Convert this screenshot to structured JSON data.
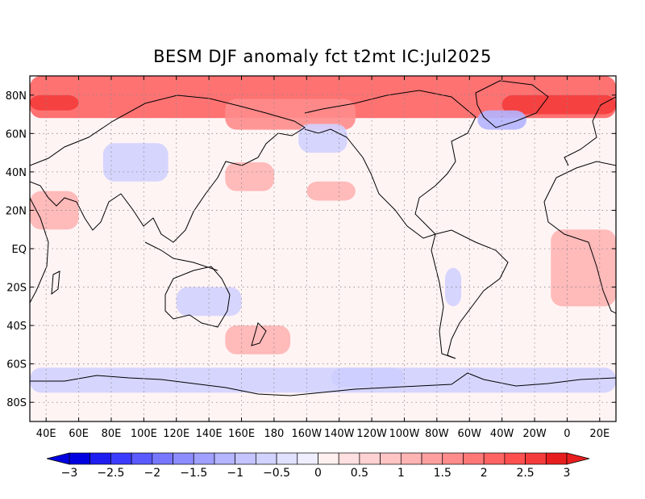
{
  "title": "BESM  DJF anomaly fct t2mt IC:Jul2025",
  "map": {
    "projection": "equirectangular",
    "lon_range": [
      30,
      390
    ],
    "lat_range": [
      -90,
      90
    ],
    "lat_ticks": [
      {
        "label": "80N",
        "value": 80
      },
      {
        "label": "60N",
        "value": 60
      },
      {
        "label": "40N",
        "value": 40
      },
      {
        "label": "20N",
        "value": 20
      },
      {
        "label": "EQ",
        "value": 0
      },
      {
        "label": "20S",
        "value": -20
      },
      {
        "label": "40S",
        "value": -40
      },
      {
        "label": "60S",
        "value": -60
      },
      {
        "label": "80S",
        "value": -80
      }
    ],
    "lon_ticks": [
      {
        "label": "40E",
        "value": 40
      },
      {
        "label": "60E",
        "value": 60
      },
      {
        "label": "80E",
        "value": 80
      },
      {
        "label": "100E",
        "value": 100
      },
      {
        "label": "120E",
        "value": 120
      },
      {
        "label": "140E",
        "value": 140
      },
      {
        "label": "160E",
        "value": 160
      },
      {
        "label": "180",
        "value": 180
      },
      {
        "label": "160W",
        "value": 200
      },
      {
        "label": "140W",
        "value": 220
      },
      {
        "label": "120W",
        "value": 240
      },
      {
        "label": "100W",
        "value": 260
      },
      {
        "label": "80W",
        "value": 280
      },
      {
        "label": "60W",
        "value": 300
      },
      {
        "label": "40W",
        "value": 320
      },
      {
        "label": "20W",
        "value": 340
      },
      {
        "label": "0",
        "value": 360
      },
      {
        "label": "20E",
        "value": 380
      }
    ],
    "anomaly_regions": [
      {
        "level": 2.0,
        "lon": [
          30,
          390
        ],
        "lat": [
          68,
          90
        ]
      },
      {
        "level": 2.5,
        "lon": [
          30,
          60
        ],
        "lat": [
          72,
          80
        ]
      },
      {
        "level": 2.5,
        "lon": [
          320,
          390
        ],
        "lat": [
          70,
          80
        ]
      },
      {
        "level": 1.5,
        "lon": [
          150,
          230
        ],
        "lat": [
          62,
          78
        ]
      },
      {
        "level": 1.0,
        "lon": [
          150,
          180
        ],
        "lat": [
          30,
          45
        ]
      },
      {
        "level": 1.0,
        "lon": [
          200,
          230
        ],
        "lat": [
          25,
          35
        ]
      },
      {
        "level": 1.0,
        "lon": [
          30,
          60
        ],
        "lat": [
          10,
          30
        ]
      },
      {
        "level": 1.0,
        "lon": [
          350,
          390
        ],
        "lat": [
          -30,
          10
        ]
      },
      {
        "level": 1.0,
        "lon": [
          150,
          190
        ],
        "lat": [
          -55,
          -40
        ]
      },
      {
        "level": -1.0,
        "lon": [
          305,
          335
        ],
        "lat": [
          62,
          72
        ]
      },
      {
        "level": -0.5,
        "lon": [
          195,
          225
        ],
        "lat": [
          50,
          65
        ]
      },
      {
        "level": -0.5,
        "lon": [
          75,
          115
        ],
        "lat": [
          35,
          55
        ]
      },
      {
        "level": -0.5,
        "lon": [
          120,
          160
        ],
        "lat": [
          -35,
          -20
        ]
      },
      {
        "level": -1.0,
        "lon": [
          215,
          260
        ],
        "lat": [
          -72,
          -62
        ]
      },
      {
        "level": -0.5,
        "lon": [
          30,
          390
        ],
        "lat": [
          -75,
          -62
        ]
      },
      {
        "level": -0.5,
        "lon": [
          285,
          295
        ],
        "lat": [
          -30,
          -10
        ]
      }
    ]
  },
  "colorbar": {
    "min": -3,
    "max": 3,
    "step": 0.25,
    "labels": [
      "−3",
      "−2.5",
      "−2",
      "−1.5",
      "−1",
      "−0.5",
      "0",
      "0.5",
      "1",
      "1.5",
      "2",
      "2.5",
      "3"
    ],
    "colors_negative": [
      "#0000e0",
      "#1e1ef0",
      "#3c3cff",
      "#5a5aff",
      "#7878ff",
      "#8c8cff",
      "#a0a0ff",
      "#b4b4ff",
      "#c4c4ff",
      "#d2d2ff",
      "#e0e0ff",
      "#eeeeff"
    ],
    "colors_positive": [
      "#fff0f0",
      "#ffe0e0",
      "#ffd2d2",
      "#ffc4c4",
      "#ffb4b4",
      "#ffa0a0",
      "#ff8c8c",
      "#ff7878",
      "#ff6464",
      "#ff5050",
      "#f53c3c",
      "#e81e1e"
    ]
  }
}
